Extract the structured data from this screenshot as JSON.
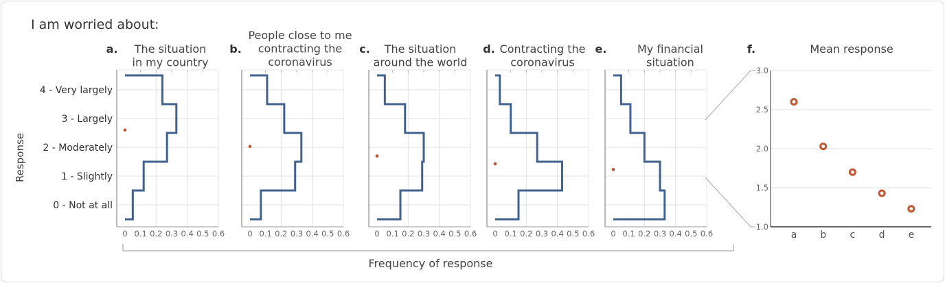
{
  "figure": {
    "heading": "I am worried about:",
    "ylabel": "Response",
    "xlabel": "Frequency of response"
  },
  "colors": {
    "step_line": "#41618f",
    "mean_marker": "#c4532f",
    "grid": "#e2e2e2",
    "axis": "#555555"
  },
  "chart_data": [
    {
      "type": "step",
      "letter": "a.",
      "title": [
        "The situation",
        "in my country"
      ],
      "categories": [
        "0 - Not at all",
        "1 - Slightly",
        "2 - Moderately",
        "3 - Largely",
        "4 - Very largely"
      ],
      "levels": [
        0,
        1,
        2,
        3,
        4
      ],
      "values": [
        0.05,
        0.12,
        0.27,
        0.33,
        0.24
      ],
      "mean": 2.6,
      "xticks": [
        "0",
        "0.1",
        "0.2",
        "0.3",
        "0.4",
        "0.5",
        "0.6"
      ],
      "xlim": [
        0,
        0.6
      ],
      "grid": true
    },
    {
      "type": "step",
      "letter": "b.",
      "title": [
        "People close to me",
        "contracting the",
        "coronavirus"
      ],
      "levels": [
        0,
        1,
        2,
        3,
        4
      ],
      "values": [
        0.07,
        0.29,
        0.33,
        0.22,
        0.11
      ],
      "mean": 2.03,
      "xticks": [
        "0",
        "0.1",
        "0.2",
        "0.3",
        "0.4",
        "0.5",
        "0.6"
      ],
      "xlim": [
        0,
        0.6
      ],
      "grid": true
    },
    {
      "type": "step",
      "letter": "c.",
      "title": [
        "The situation",
        "around the world"
      ],
      "levels": [
        0,
        1,
        2,
        3,
        4
      ],
      "values": [
        0.15,
        0.29,
        0.3,
        0.18,
        0.05
      ],
      "mean": 1.7,
      "xticks": [
        "0",
        "0.1",
        "0.2",
        "0.3",
        "0.4",
        "0.5",
        "0.6"
      ],
      "xlim": [
        0,
        0.6
      ],
      "grid": true
    },
    {
      "type": "step",
      "letter": "d.",
      "title": [
        "Contracting the",
        "coronavirus"
      ],
      "levels": [
        0,
        1,
        2,
        3,
        4
      ],
      "values": [
        0.15,
        0.43,
        0.27,
        0.1,
        0.03
      ],
      "mean": 1.43,
      "xticks": [
        "0",
        "0.1",
        "0.2",
        "0.3",
        "0.4",
        "0.5",
        "0.6"
      ],
      "xlim": [
        0,
        0.6
      ],
      "grid": true
    },
    {
      "type": "step",
      "letter": "e.",
      "title": [
        "My financial",
        "situation"
      ],
      "levels": [
        0,
        1,
        2,
        3,
        4
      ],
      "values": [
        0.33,
        0.3,
        0.2,
        0.11,
        0.05
      ],
      "mean": 1.23,
      "xticks": [
        "0",
        "0.1",
        "0.2",
        "0.3",
        "0.4",
        "0.5",
        "0.6"
      ],
      "xlim": [
        0,
        0.6
      ],
      "grid": true
    },
    {
      "type": "scatter",
      "letter": "f.",
      "title": [
        "Mean response"
      ],
      "categories": [
        "a",
        "b",
        "c",
        "d",
        "e"
      ],
      "values": [
        2.6,
        2.03,
        1.7,
        1.43,
        1.23
      ],
      "yticks": [
        "1.0",
        "1.5",
        "2.0",
        "2.5",
        "3.0"
      ],
      "ylim": [
        1.0,
        3.0
      ],
      "grid": true
    }
  ]
}
